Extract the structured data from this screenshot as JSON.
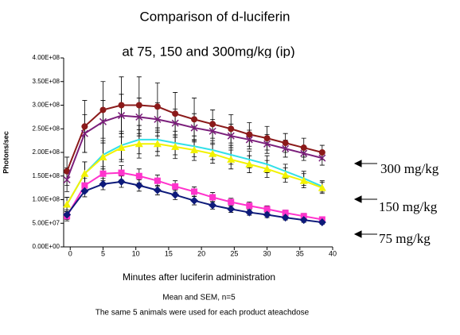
{
  "chart_data": {
    "type": "line",
    "title": "Comparison of d-luciferin",
    "subtitle": "at 75, 150 and 300mg/kg (ip)",
    "y_label": "Photons/sec",
    "x_label": "Minutes after luciferin administration",
    "notes": [
      "Mean and SEM, n=5",
      "The same 5 animals were used for each product ateachdose"
    ],
    "annotations": [
      "300 mg/kg",
      "150 mg/kg",
      "75 mg/kg"
    ],
    "x": [
      -0.5,
      2.2,
      5,
      7.8,
      10.5,
      13.3,
      16,
      18.9,
      21.7,
      24.5,
      27.3,
      30,
      32.8,
      35.6,
      38.4
    ],
    "xlim": [
      -1,
      40
    ],
    "xticks": [
      0,
      5,
      10,
      15,
      20,
      25,
      30,
      35,
      40
    ],
    "ylim": [
      0,
      400000000
    ],
    "yticks": [
      {
        "value": 0,
        "label": "0.00E+00"
      },
      {
        "value": 50000000,
        "label": "5.00E+07"
      },
      {
        "value": 100000000,
        "label": "1.00E+08"
      },
      {
        "value": 150000000,
        "label": "1.50E+08"
      },
      {
        "value": 200000000,
        "label": "2.00E+08"
      },
      {
        "value": 250000000,
        "label": "2.50E+08"
      },
      {
        "value": 300000000,
        "label": "3.00E+08"
      },
      {
        "value": 350000000,
        "label": "3.50E+08"
      },
      {
        "value": 400000000,
        "label": "4.00E+08"
      }
    ],
    "series": [
      {
        "color": "#8b1a1a",
        "marker": "circle",
        "values": [
          160000000.0,
          255000000.0,
          290000000.0,
          300000000.0,
          300000000.0,
          297000000.0,
          282000000.0,
          270000000.0,
          260000000.0,
          250000000.0,
          238000000.0,
          230000000.0,
          220000000.0,
          210000000.0,
          200000000.0
        ],
        "errors": [
          30000000.0,
          55000000.0,
          60000000.0,
          60000000.0,
          60000000.0,
          50000000.0,
          45000000.0,
          45000000.0,
          30000000.0,
          30000000.0,
          25000000.0,
          25000000.0,
          20000000.0,
          20000000.0,
          15000000.0
        ]
      },
      {
        "color": "#7b1f7b",
        "marker": "x",
        "values": [
          142000000.0,
          240000000.0,
          265000000.0,
          278000000.0,
          275000000.0,
          270000000.0,
          262000000.0,
          252000000.0,
          245000000.0,
          235000000.0,
          227000000.0,
          218000000.0,
          208000000.0,
          198000000.0,
          188000000.0
        ],
        "errors": [
          25000000.0,
          40000000.0,
          45000000.0,
          45000000.0,
          40000000.0,
          35000000.0,
          30000000.0,
          30000000.0,
          25000000.0,
          25000000.0,
          20000000.0,
          20000000.0,
          18000000.0,
          15000000.0,
          15000000.0
        ]
      },
      {
        "color": "#33e0e8",
        "marker": "none",
        "values": [
          90000000.0,
          155000000.0,
          195000000.0,
          215000000.0,
          227000000.0,
          227000000.0,
          220000000.0,
          213000000.0,
          205000000.0,
          195000000.0,
          185000000.0,
          175000000.0,
          160000000.0,
          145000000.0,
          128000000.0
        ],
        "errors": [
          15000000.0,
          25000000.0,
          30000000.0,
          30000000.0,
          30000000.0,
          25000000.0,
          25000000.0,
          22000000.0,
          20000000.0,
          20000000.0,
          18000000.0,
          18000000.0,
          15000000.0,
          15000000.0,
          12000000.0
        ]
      },
      {
        "color": "#f2f200",
        "marker": "triangle",
        "values": [
          90000000.0,
          155000000.0,
          190000000.0,
          210000000.0,
          218000000.0,
          218000000.0,
          212000000.0,
          205000000.0,
          197000000.0,
          185000000.0,
          175000000.0,
          165000000.0,
          152000000.0,
          140000000.0,
          125000000.0
        ],
        "errors": [
          15000000.0,
          25000000.0,
          30000000.0,
          30000000.0,
          30000000.0,
          25000000.0,
          25000000.0,
          22000000.0,
          20000000.0,
          20000000.0,
          18000000.0,
          18000000.0,
          15000000.0,
          15000000.0,
          12000000.0
        ]
      },
      {
        "color": "#ff33cc",
        "marker": "square",
        "values": [
          65000000.0,
          130000000.0,
          155000000.0,
          157000000.0,
          150000000.0,
          140000000.0,
          128000000.0,
          117000000.0,
          105000000.0,
          95000000.0,
          87000000.0,
          80000000.0,
          72000000.0,
          65000000.0,
          58000000.0
        ],
        "errors": [
          10000000.0,
          15000000.0,
          15000000.0,
          15000000.0,
          15000000.0,
          12000000.0,
          12000000.0,
          10000000.0,
          10000000.0,
          8000000.0,
          8000000.0,
          7000000.0,
          6000000.0,
          6000000.0,
          5000000.0
        ]
      },
      {
        "color": "#0d1a7a",
        "marker": "diamond",
        "values": [
          68000000.0,
          118000000.0,
          133000000.0,
          138000000.0,
          130000000.0,
          120000000.0,
          110000000.0,
          98000000.0,
          88000000.0,
          80000000.0,
          73000000.0,
          68000000.0,
          62000000.0,
          57000000.0,
          52000000.0
        ],
        "errors": [
          10000000.0,
          12000000.0,
          12000000.0,
          12000000.0,
          12000000.0,
          10000000.0,
          10000000.0,
          9000000.0,
          8000000.0,
          7000000.0,
          6000000.0,
          6000000.0,
          5000000.0,
          5000000.0,
          4000000.0
        ]
      }
    ]
  }
}
